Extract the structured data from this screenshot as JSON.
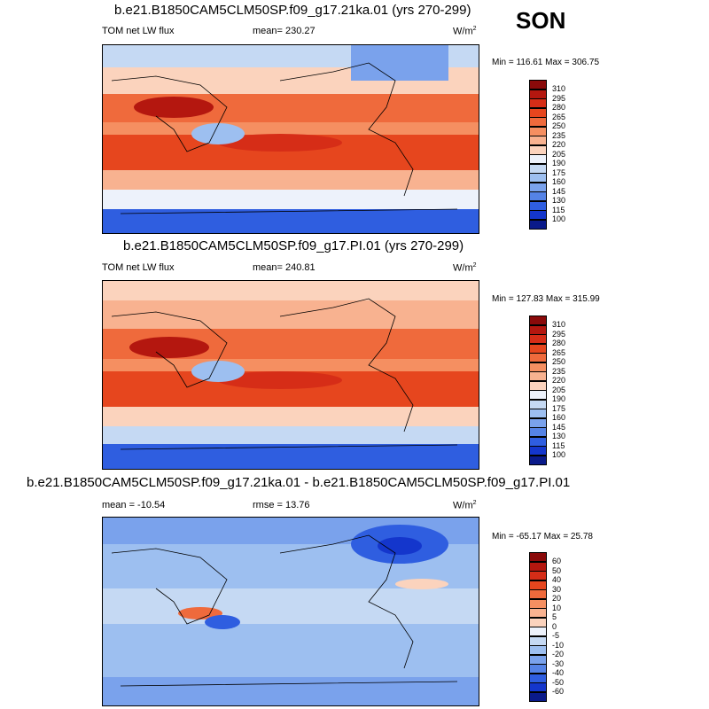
{
  "season": "SON",
  "panels": [
    {
      "title": "b.e21.B1850CAM5CLM50SP.f09_g17.21ka.01 (yrs 270-299)",
      "left_label": "TOM net LW flux",
      "center_label": "mean= 230.27",
      "units_base": "W/m",
      "units_exp": "2",
      "minmax": "Min = 116.61 Max = 306.75",
      "colorbar_labels": [
        "310",
        "295",
        "280",
        "265",
        "250",
        "235",
        "220",
        "205",
        "190",
        "175",
        "160",
        "145",
        "130",
        "115",
        "100"
      ],
      "colorbar_colors": [
        "#8a0a0a",
        "#b4170f",
        "#d62d17",
        "#e6461e",
        "#ef6a3c",
        "#f58f61",
        "#f8b290",
        "#fbd3bd",
        "#edf2fb",
        "#c5d9f3",
        "#9dbff0",
        "#7aa2ec",
        "#5583e6",
        "#2f5ee0",
        "#1436cc",
        "#0a1a8a"
      ]
    },
    {
      "title": "b.e21.B1850CAM5CLM50SP.f09_g17.PI.01 (yrs 270-299)",
      "left_label": "TOM net LW flux",
      "center_label": "mean= 240.81",
      "units_base": "W/m",
      "units_exp": "2",
      "minmax": "Min = 127.83 Max = 315.99",
      "colorbar_labels": [
        "310",
        "295",
        "280",
        "265",
        "250",
        "235",
        "220",
        "205",
        "190",
        "175",
        "160",
        "145",
        "130",
        "115",
        "100"
      ],
      "colorbar_colors": [
        "#8a0a0a",
        "#b4170f",
        "#d62d17",
        "#e6461e",
        "#ef6a3c",
        "#f58f61",
        "#f8b290",
        "#fbd3bd",
        "#edf2fb",
        "#c5d9f3",
        "#9dbff0",
        "#7aa2ec",
        "#5583e6",
        "#2f5ee0",
        "#1436cc",
        "#0a1a8a"
      ]
    },
    {
      "title": "b.e21.B1850CAM5CLM50SP.f09_g17.21ka.01 - b.e21.B1850CAM5CLM50SP.f09_g17.PI.01",
      "left_label": "mean = -10.54",
      "center_label": "rmse =  13.76",
      "units_base": "W/m",
      "units_exp": "2",
      "minmax": "Min = -65.17 Max =  25.78",
      "colorbar_labels": [
        "60",
        "50",
        "40",
        "30",
        "20",
        "10",
        "5",
        "0",
        "-5",
        "-10",
        "-20",
        "-30",
        "-40",
        "-50",
        "-60"
      ],
      "colorbar_colors": [
        "#8a0a0a",
        "#b4170f",
        "#d62d17",
        "#e6461e",
        "#ef6a3c",
        "#f58f61",
        "#f8b290",
        "#fbd3bd",
        "#edf2fb",
        "#c5d9f3",
        "#9dbff0",
        "#7aa2ec",
        "#5583e6",
        "#2f5ee0",
        "#1436cc",
        "#0a1a8a"
      ]
    }
  ]
}
